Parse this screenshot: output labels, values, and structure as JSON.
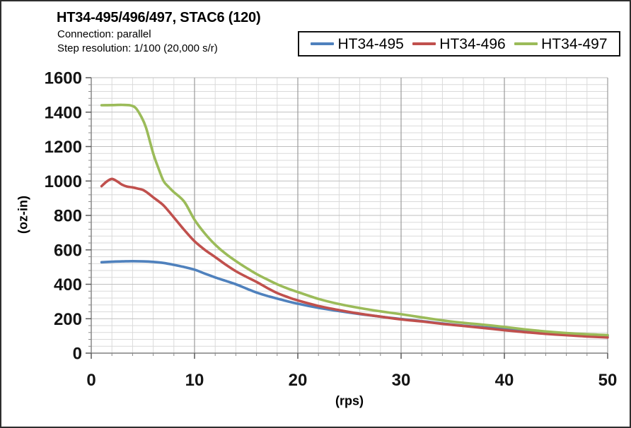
{
  "header": {
    "title": "HT34-495/496/497, STAC6 (120)",
    "subtitle_connection": "Connection: parallel",
    "subtitle_step_resolution": "Step resolution: 1/100 (20,000 s/r)"
  },
  "chart_data": {
    "type": "line",
    "title": "HT34-495/496/497, STAC6 (120)",
    "xlabel": "(rps)",
    "ylabel": "(oz-in)",
    "xlim": [
      0,
      50
    ],
    "ylim": [
      0,
      1600
    ],
    "x_major_step": 10,
    "x_minor_step": 2,
    "y_major_step": 200,
    "y_minor_step": 40,
    "grid": true,
    "legend_position": "top-right",
    "series": [
      {
        "name": "HT34-495",
        "color": "#4F81BD",
        "points": [
          [
            1,
            528
          ],
          [
            2,
            531
          ],
          [
            3,
            533
          ],
          [
            4,
            534
          ],
          [
            5,
            533
          ],
          [
            6,
            530
          ],
          [
            7,
            524
          ],
          [
            8,
            513
          ],
          [
            9,
            500
          ],
          [
            10,
            485
          ],
          [
            11,
            462
          ],
          [
            12,
            440
          ],
          [
            13,
            420
          ],
          [
            14,
            400
          ],
          [
            15,
            376
          ],
          [
            16,
            352
          ],
          [
            17,
            333
          ],
          [
            18,
            317
          ],
          [
            19,
            301
          ],
          [
            20,
            287
          ],
          [
            22,
            263
          ],
          [
            24,
            244
          ],
          [
            26,
            227
          ],
          [
            28,
            212
          ],
          [
            30,
            198
          ],
          [
            32,
            186
          ],
          [
            34,
            172
          ],
          [
            36,
            160
          ],
          [
            38,
            150
          ],
          [
            40,
            142
          ],
          [
            42,
            131
          ],
          [
            44,
            120
          ],
          [
            46,
            112
          ],
          [
            48,
            106
          ],
          [
            50,
            100
          ]
        ]
      },
      {
        "name": "HT34-496",
        "color": "#C0504D",
        "points": [
          [
            1,
            970
          ],
          [
            1.5,
            997
          ],
          [
            2,
            1012
          ],
          [
            2.5,
            998
          ],
          [
            3,
            978
          ],
          [
            3.5,
            967
          ],
          [
            4,
            963
          ],
          [
            4.5,
            956
          ],
          [
            5,
            948
          ],
          [
            5.5,
            929
          ],
          [
            6,
            905
          ],
          [
            6.5,
            883
          ],
          [
            7,
            858
          ],
          [
            7.5,
            824
          ],
          [
            8,
            788
          ],
          [
            9,
            716
          ],
          [
            10,
            650
          ],
          [
            11,
            600
          ],
          [
            12,
            558
          ],
          [
            13,
            515
          ],
          [
            14,
            476
          ],
          [
            15,
            444
          ],
          [
            16,
            414
          ],
          [
            17,
            380
          ],
          [
            18,
            349
          ],
          [
            19,
            326
          ],
          [
            20,
            306
          ],
          [
            22,
            274
          ],
          [
            24,
            250
          ],
          [
            26,
            229
          ],
          [
            28,
            212
          ],
          [
            30,
            196
          ],
          [
            32,
            184
          ],
          [
            34,
            170
          ],
          [
            36,
            158
          ],
          [
            38,
            146
          ],
          [
            40,
            133
          ],
          [
            42,
            122
          ],
          [
            44,
            112
          ],
          [
            46,
            104
          ],
          [
            48,
            97
          ],
          [
            50,
            91
          ]
        ]
      },
      {
        "name": "HT34-497",
        "color": "#9BBB59",
        "points": [
          [
            1,
            1440
          ],
          [
            2,
            1441
          ],
          [
            3,
            1442
          ],
          [
            3.8,
            1439
          ],
          [
            4.3,
            1424
          ],
          [
            4.8,
            1378
          ],
          [
            5.3,
            1310
          ],
          [
            6,
            1160
          ],
          [
            6.5,
            1075
          ],
          [
            7,
            1000
          ],
          [
            7.5,
            965
          ],
          [
            8,
            935
          ],
          [
            9,
            880
          ],
          [
            10,
            775
          ],
          [
            11,
            695
          ],
          [
            12,
            630
          ],
          [
            13,
            578
          ],
          [
            14,
            535
          ],
          [
            15,
            496
          ],
          [
            16,
            460
          ],
          [
            17,
            429
          ],
          [
            18,
            400
          ],
          [
            19,
            376
          ],
          [
            20,
            355
          ],
          [
            22,
            315
          ],
          [
            24,
            285
          ],
          [
            26,
            262
          ],
          [
            28,
            243
          ],
          [
            30,
            226
          ],
          [
            32,
            208
          ],
          [
            34,
            190
          ],
          [
            36,
            176
          ],
          [
            38,
            165
          ],
          [
            40,
            152
          ],
          [
            42,
            138
          ],
          [
            44,
            126
          ],
          [
            46,
            117
          ],
          [
            48,
            110
          ],
          [
            50,
            105
          ]
        ]
      }
    ]
  },
  "style_colors": {
    "axis": "#808080",
    "grid_minor": "#DADADA",
    "grid_major_h": "#BFBFBF",
    "grid_major_v": "#9B9B9B",
    "tick_major": "#595959",
    "tick_minor": "#8A8A8A"
  }
}
